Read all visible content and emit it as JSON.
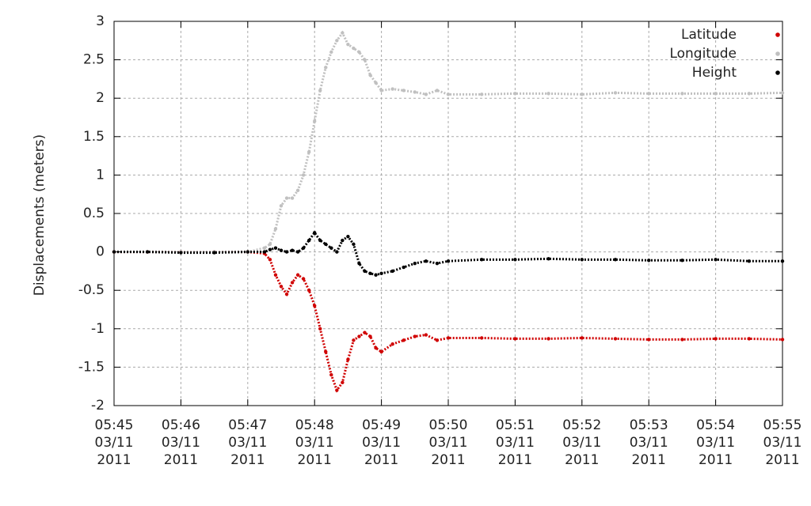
{
  "chart_data": {
    "type": "scatter",
    "ylabel": "Displacements (meters)",
    "x": [
      "2011-03-11T05:45:00",
      "2011-03-11T05:45:30",
      "2011-03-11T05:46:00",
      "2011-03-11T05:46:30",
      "2011-03-11T05:47:00",
      "2011-03-11T05:47:15",
      "2011-03-11T05:47:20",
      "2011-03-11T05:47:25",
      "2011-03-11T05:47:30",
      "2011-03-11T05:47:35",
      "2011-03-11T05:47:40",
      "2011-03-11T05:47:45",
      "2011-03-11T05:47:50",
      "2011-03-11T05:47:55",
      "2011-03-11T05:48:00",
      "2011-03-11T05:48:05",
      "2011-03-11T05:48:10",
      "2011-03-11T05:48:15",
      "2011-03-11T05:48:20",
      "2011-03-11T05:48:25",
      "2011-03-11T05:48:30",
      "2011-03-11T05:48:35",
      "2011-03-11T05:48:40",
      "2011-03-11T05:48:45",
      "2011-03-11T05:48:50",
      "2011-03-11T05:48:55",
      "2011-03-11T05:49:00",
      "2011-03-11T05:49:10",
      "2011-03-11T05:49:20",
      "2011-03-11T05:49:30",
      "2011-03-11T05:49:40",
      "2011-03-11T05:49:50",
      "2011-03-11T05:50:00",
      "2011-03-11T05:50:30",
      "2011-03-11T05:51:00",
      "2011-03-11T05:51:30",
      "2011-03-11T05:52:00",
      "2011-03-11T05:52:30",
      "2011-03-11T05:53:00",
      "2011-03-11T05:53:30",
      "2011-03-11T05:54:00",
      "2011-03-11T05:54:30",
      "2011-03-11T05:55:00"
    ],
    "series": [
      {
        "name": "Latitude",
        "color": "#d00000",
        "values": [
          0,
          0,
          0,
          0,
          0,
          -0.02,
          -0.1,
          -0.3,
          -0.45,
          -0.55,
          -0.4,
          -0.3,
          -0.35,
          -0.5,
          -0.7,
          -1.0,
          -1.3,
          -1.6,
          -1.8,
          -1.7,
          -1.4,
          -1.15,
          -1.1,
          -1.05,
          -1.1,
          -1.25,
          -1.3,
          -1.2,
          -1.15,
          -1.1,
          -1.08,
          -1.15,
          -1.12,
          -1.12,
          -1.13,
          -1.13,
          -1.12,
          -1.13,
          -1.14,
          -1.14,
          -1.13,
          -1.13,
          -1.14
        ]
      },
      {
        "name": "Longitude",
        "color": "#c0c0c0",
        "values": [
          0,
          0,
          0,
          0,
          0,
          0.05,
          0.1,
          0.3,
          0.6,
          0.7,
          0.7,
          0.8,
          1.0,
          1.3,
          1.7,
          2.1,
          2.4,
          2.6,
          2.75,
          2.85,
          2.7,
          2.65,
          2.6,
          2.5,
          2.3,
          2.2,
          2.1,
          2.12,
          2.1,
          2.08,
          2.05,
          2.1,
          2.05,
          2.05,
          2.06,
          2.06,
          2.05,
          2.07,
          2.06,
          2.06,
          2.06,
          2.06,
          2.07
        ]
      },
      {
        "name": "Height",
        "color": "#000000",
        "values": [
          0,
          0,
          -0.01,
          -0.01,
          0,
          0,
          0.03,
          0.05,
          0.02,
          0,
          0.02,
          0,
          0.05,
          0.15,
          0.25,
          0.15,
          0.1,
          0.05,
          0,
          0.15,
          0.2,
          0.1,
          -0.15,
          -0.25,
          -0.28,
          -0.3,
          -0.28,
          -0.25,
          -0.2,
          -0.15,
          -0.12,
          -0.15,
          -0.12,
          -0.1,
          -0.1,
          -0.09,
          -0.1,
          -0.1,
          -0.11,
          -0.11,
          -0.1,
          -0.12,
          -0.12
        ]
      }
    ],
    "xlim": [
      "2011-03-11T05:45:00",
      "2011-03-11T05:55:00"
    ],
    "xticks": [
      {
        "value": "2011-03-11T05:45:00",
        "label": "05:45\n03/11\n2011"
      },
      {
        "value": "2011-03-11T05:46:00",
        "label": "05:46\n03/11\n2011"
      },
      {
        "value": "2011-03-11T05:47:00",
        "label": "05:47\n03/11\n2011"
      },
      {
        "value": "2011-03-11T05:48:00",
        "label": "05:48\n03/11\n2011"
      },
      {
        "value": "2011-03-11T05:49:00",
        "label": "05:49\n03/11\n2011"
      },
      {
        "value": "2011-03-11T05:50:00",
        "label": "05:50\n03/11\n2011"
      },
      {
        "value": "2011-03-11T05:51:00",
        "label": "05:51\n03/11\n2011"
      },
      {
        "value": "2011-03-11T05:52:00",
        "label": "05:52\n03/11\n2011"
      },
      {
        "value": "2011-03-11T05:53:00",
        "label": "05:53\n03/11\n2011"
      },
      {
        "value": "2011-03-11T05:54:00",
        "label": "05:54\n03/11\n2011"
      },
      {
        "value": "2011-03-11T05:55:00",
        "label": "05:55\n03/11\n2011"
      }
    ],
    "ylim": [
      -2,
      3
    ],
    "yticks": [
      -2,
      -1.5,
      -1,
      -0.5,
      0,
      0.5,
      1,
      1.5,
      2,
      2.5,
      3
    ],
    "grid": true,
    "legend": "upper right"
  }
}
